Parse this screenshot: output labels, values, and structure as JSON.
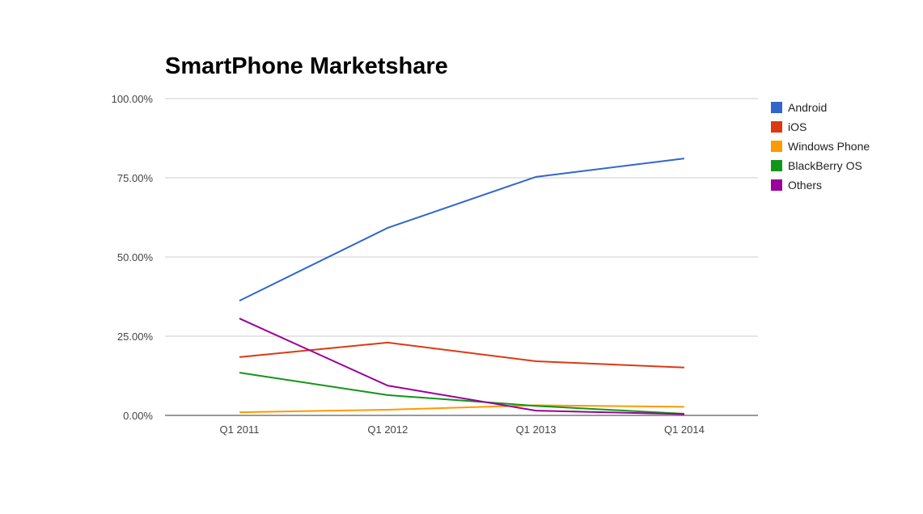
{
  "chart_data": {
    "type": "line",
    "title": "SmartPhone Marketshare",
    "xlabel": "",
    "ylabel": "",
    "categories": [
      "Q1 2011",
      "Q1 2012",
      "Q1 2013",
      "Q1 2014"
    ],
    "ylim": [
      0,
      100
    ],
    "yticks": [
      "0.00%",
      "25.00%",
      "50.00%",
      "75.00%",
      "100.00%"
    ],
    "ytick_values": [
      0,
      25,
      50,
      75,
      100
    ],
    "grid": true,
    "legend_position": "right",
    "series": [
      {
        "name": "Android",
        "color": "#3366cc",
        "values": [
          36.2,
          59.2,
          75.3,
          81.1
        ]
      },
      {
        "name": "iOS",
        "color": "#dc3912",
        "values": [
          18.4,
          23.0,
          17.1,
          15.1
        ]
      },
      {
        "name": "Windows Phone",
        "color": "#ff9900",
        "values": [
          1.0,
          1.8,
          3.2,
          2.7
        ]
      },
      {
        "name": "BlackBerry OS",
        "color": "#109618",
        "values": [
          13.5,
          6.4,
          3.0,
          0.5
        ]
      },
      {
        "name": "Others",
        "color": "#990099",
        "values": [
          30.6,
          9.4,
          1.5,
          0.4
        ]
      }
    ]
  }
}
